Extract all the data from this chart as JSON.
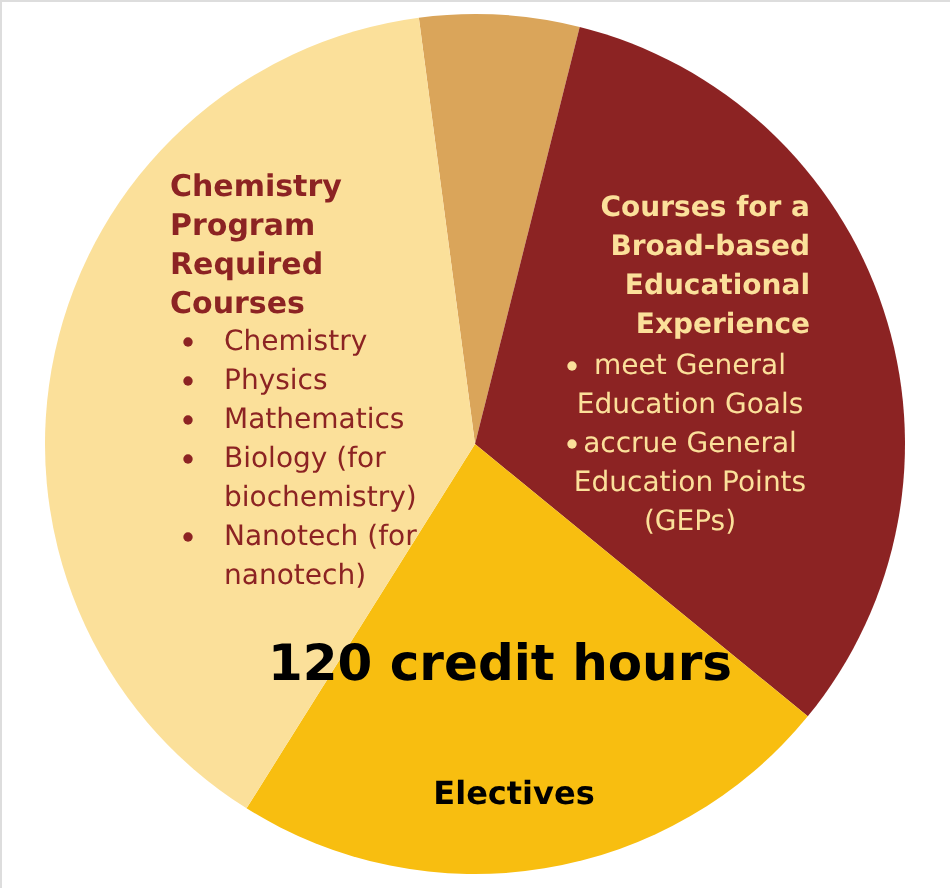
{
  "chart_data": {
    "type": "pie",
    "categories": [
      null,
      "Courses for a Broad-based Educational Experience",
      "Electives",
      "Chemistry Program Required Courses"
    ],
    "values": [
      6,
      32,
      23,
      39
    ],
    "colors": [
      "#daa55a",
      "#8c2323",
      "#f8be10",
      "#fbe09a"
    ],
    "title": "120 credit hours",
    "annotations": [
      "Chemistry",
      "Physics",
      "Mathematics",
      "Biology (for biochemistry)",
      "Nanotech (for nanotech)",
      "meet General Education Goals",
      "accrue General Education Points (GEPs)"
    ]
  }
}
